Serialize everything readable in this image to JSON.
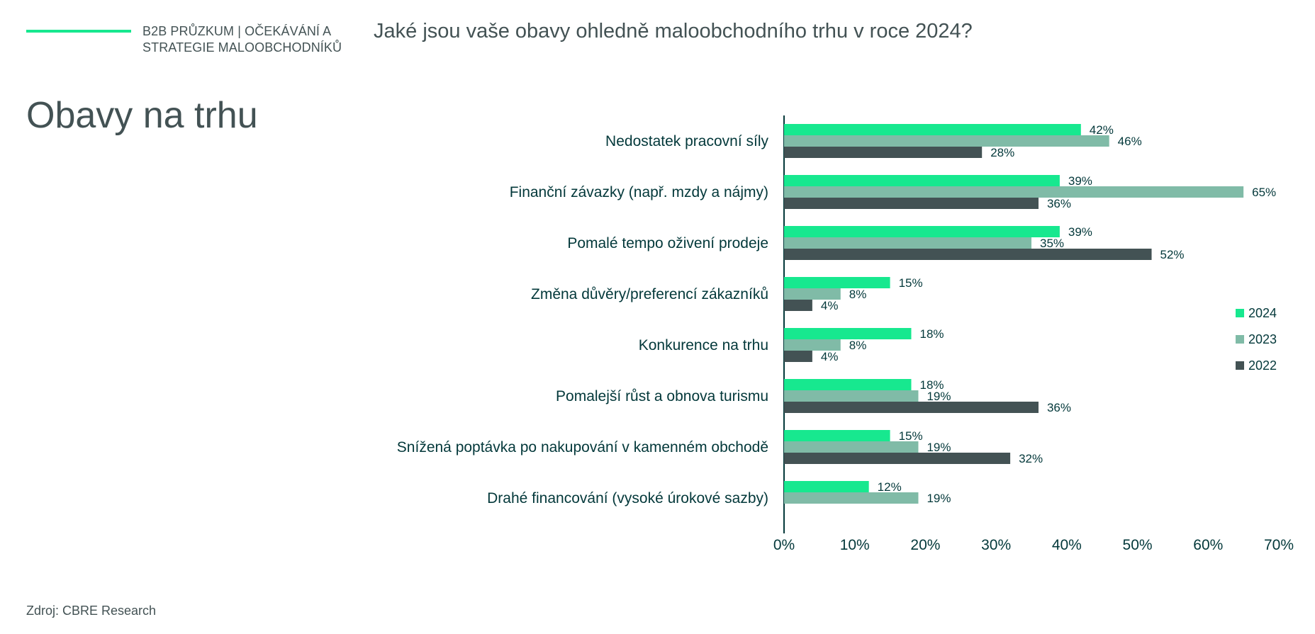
{
  "header": {
    "label_line1": "B2B PRŮZKUM |  OČEKÁVÁNÍ A",
    "label_line2": "STRATEGIE MALOOBCHODNÍKŮ",
    "question": "Jaké jsou vaše obavy ohledně maloobchodního trhu v roce 2024?"
  },
  "page_title": "Obavy na trhu",
  "source": "Zdroj: CBRE Research",
  "colors": {
    "accent": "#17e88f",
    "series_2024": "#17e88f",
    "series_2023": "#80bba7",
    "series_2022": "#435254",
    "text_dark": "#03383a",
    "text_gray": "#435254"
  },
  "chart_data": {
    "type": "bar",
    "orientation": "horizontal",
    "categories": [
      "Nedostatek pracovní síly",
      "Finanční závazky (např. mzdy a nájmy)",
      "Pomalé tempo oživení prodeje",
      "Změna důvěry/preferencí zákazníků",
      "Konkurence na trhu",
      "Pomalejší růst a obnova turismu",
      "Snížená poptávka po nakupování v kamenném obchodě",
      "Drahé financování (vysoké úrokové sazby)"
    ],
    "series": [
      {
        "name": "2024",
        "color": "#17e88f",
        "values": [
          42,
          39,
          39,
          15,
          18,
          18,
          15,
          12
        ]
      },
      {
        "name": "2023",
        "color": "#80bba7",
        "values": [
          46,
          65,
          35,
          8,
          8,
          19,
          19,
          19
        ]
      },
      {
        "name": "2022",
        "color": "#435254",
        "values": [
          28,
          36,
          52,
          4,
          4,
          36,
          32,
          null
        ]
      }
    ],
    "value_suffix": "%",
    "xlim": [
      0,
      70
    ],
    "x_ticks": [
      "0%",
      "10%",
      "20%",
      "30%",
      "40%",
      "50%",
      "60%",
      "70%"
    ],
    "grid": false,
    "legend_position": "right"
  }
}
